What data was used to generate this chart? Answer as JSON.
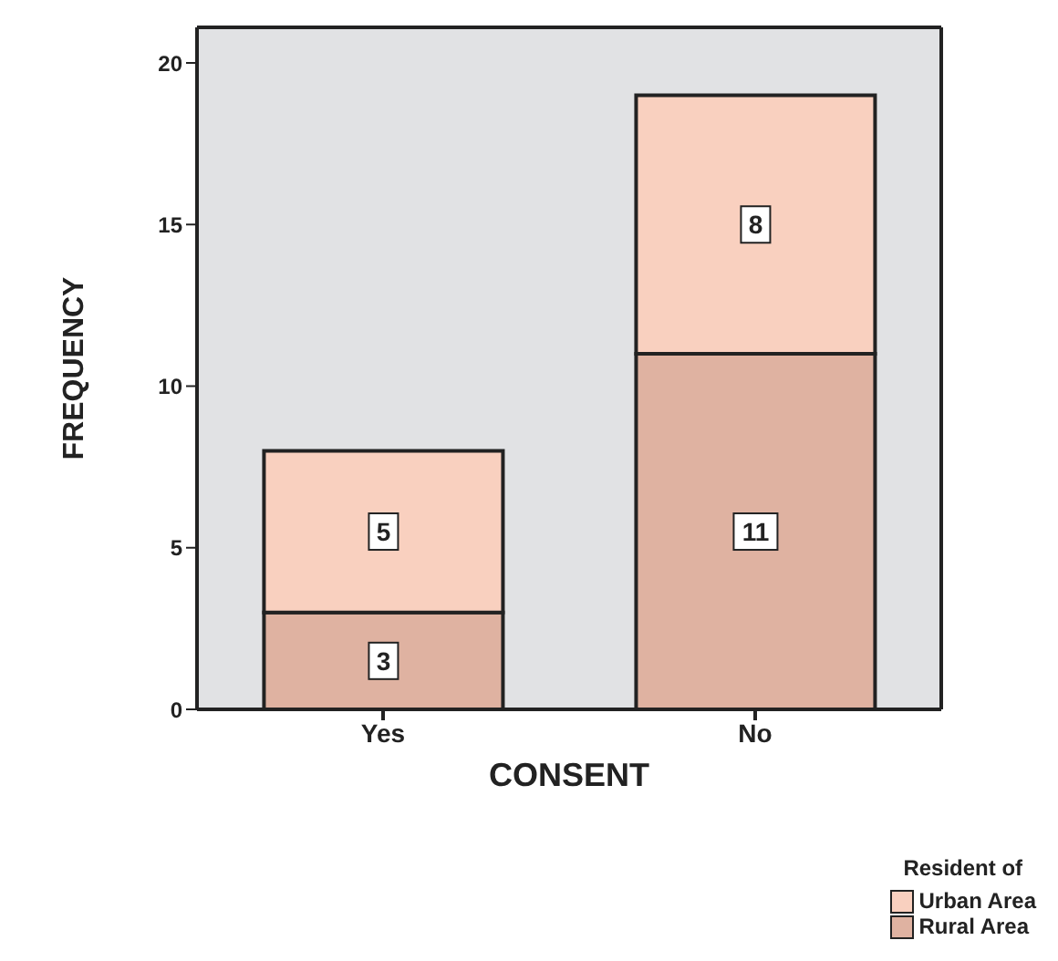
{
  "chart_data": {
    "type": "bar",
    "xlabel": "CONSENT",
    "ylabel": "FREQUENCY",
    "legend_title": "Resident of",
    "categories": [
      "Yes",
      "No"
    ],
    "series": [
      {
        "name": "Rural Area",
        "color": "#dfb2a1",
        "values": [
          3,
          11
        ]
      },
      {
        "name": "Urban Area",
        "color": "#f9d0bf",
        "values": [
          5,
          8
        ]
      }
    ],
    "stacked": true,
    "ylim": [
      0,
      21.1
    ],
    "yticks": [
      0,
      5,
      10,
      15,
      20
    ],
    "data_labels": true,
    "legend": "bottom right",
    "grid": false
  }
}
